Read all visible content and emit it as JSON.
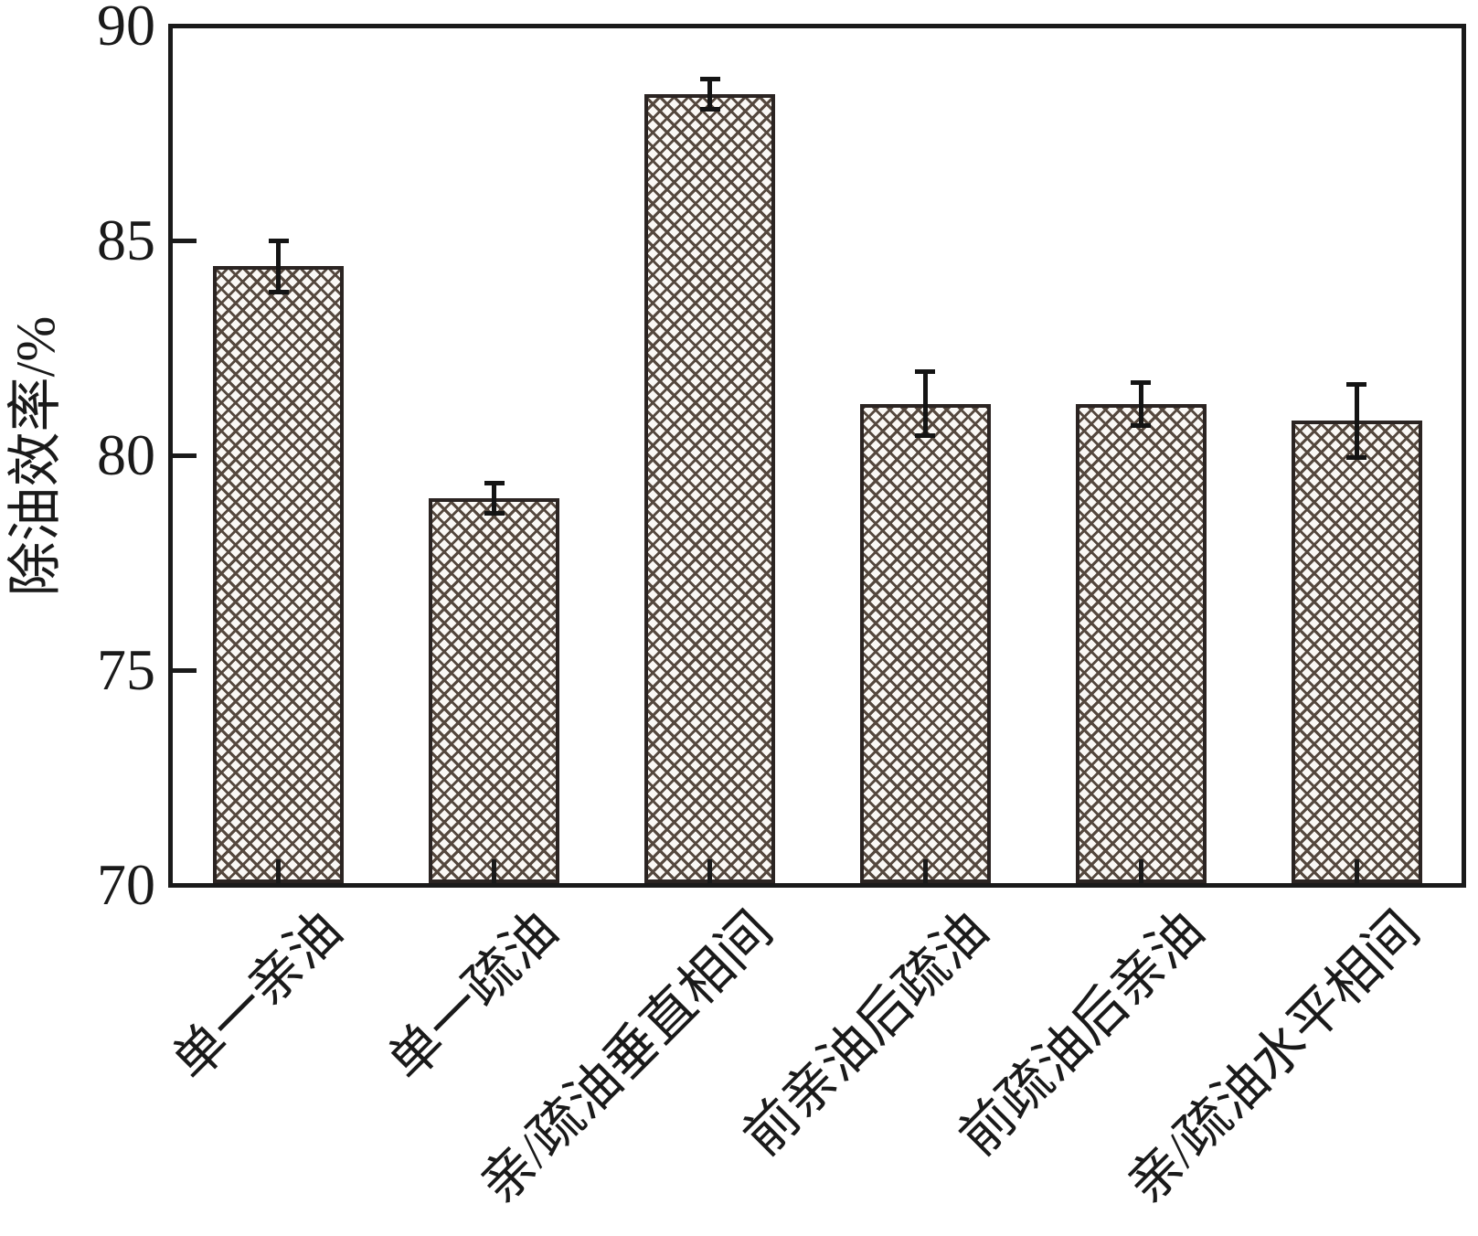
{
  "figure": {
    "background_color": "#ffffff",
    "axis_color": "#1a1a1a",
    "text_color": "#1a1a1a",
    "bar_fill_color": "#faf8f5",
    "bar_border_color": "#2b2422",
    "hatch_color": "#55483e",
    "error_bar_color": "#141414"
  },
  "chart_data": {
    "type": "bar",
    "title": "",
    "xlabel": "",
    "ylabel": "除油效率/%",
    "ylim": [
      70,
      90
    ],
    "yticks": [
      "70",
      "75",
      "80",
      "85",
      "90"
    ],
    "grid": false,
    "legend": null,
    "bar_style": "crosshatch",
    "error_bars": true,
    "categories": [
      "单一亲油",
      "单一疏油",
      "亲/疏油垂直相间",
      "前亲油后疏油",
      "前疏油后亲油",
      "亲/疏油水平相间"
    ],
    "values": [
      84.4,
      79.0,
      88.4,
      81.2,
      81.2,
      80.8
    ],
    "errors": [
      0.6,
      0.35,
      0.35,
      0.75,
      0.5,
      0.85
    ]
  }
}
